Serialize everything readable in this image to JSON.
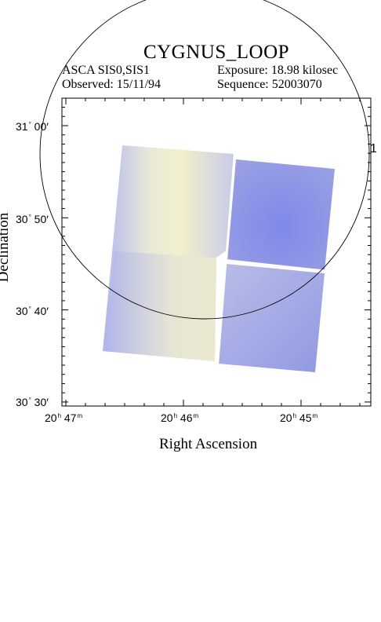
{
  "header": {
    "title": "CYGNUS_LOOP",
    "instrument": "ASCA SIS0,SIS1",
    "exposure": "Exposure: 18.98 kilosec",
    "observed": "Observed: 15/11/94",
    "sequence": "Sequence: 52003070"
  },
  "axes": {
    "xlabel": "Right Ascension",
    "ylabel": "Declination",
    "x_ticks": [
      {
        "h": "20",
        "m": "47"
      },
      {
        "h": "20",
        "m": "46"
      },
      {
        "h": "20",
        "m": "45"
      }
    ],
    "y_ticks": [
      {
        "deg": "31",
        "min": "00"
      },
      {
        "deg": "30",
        "min": "50"
      },
      {
        "deg": "30",
        "min": "40"
      },
      {
        "deg": "30",
        "min": "30"
      }
    ],
    "h_unit": "h",
    "m_unit": "m",
    "deg_unit": "°",
    "min_unit": "′"
  },
  "overlay": {
    "circle_label": "1"
  },
  "colors": {
    "image_blue": "#8d96e4",
    "image_yellow": "#f1f0cf",
    "frame": "#000000"
  }
}
